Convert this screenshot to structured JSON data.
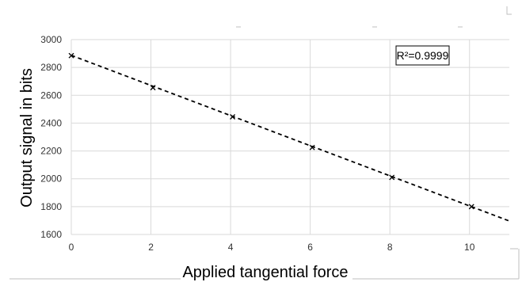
{
  "chart_data": {
    "type": "scatter",
    "xlabel": "Applied tangential force",
    "ylabel": "Output signal in bits",
    "xlim": [
      0,
      11
    ],
    "ylim": [
      1600,
      3000
    ],
    "xticks": [
      0,
      2,
      4,
      6,
      8,
      10
    ],
    "yticks": [
      1600,
      1800,
      2000,
      2200,
      2400,
      2600,
      2800,
      3000
    ],
    "grid": true,
    "series": [
      {
        "marker": "x",
        "x": [
          0,
          2.05,
          4.05,
          6.05,
          8.05,
          10.05
        ],
        "y": [
          2885,
          2655,
          2445,
          2225,
          2010,
          1800
        ]
      }
    ],
    "trendline": {
      "style": "dashed",
      "slope": -108.2,
      "intercept": 2887,
      "x_range": [
        0,
        11
      ]
    },
    "annotation": "R²=0.9999",
    "colors": {
      "grid": "#d9d9d9",
      "marker": "#000000",
      "trendline": "#000000"
    }
  }
}
